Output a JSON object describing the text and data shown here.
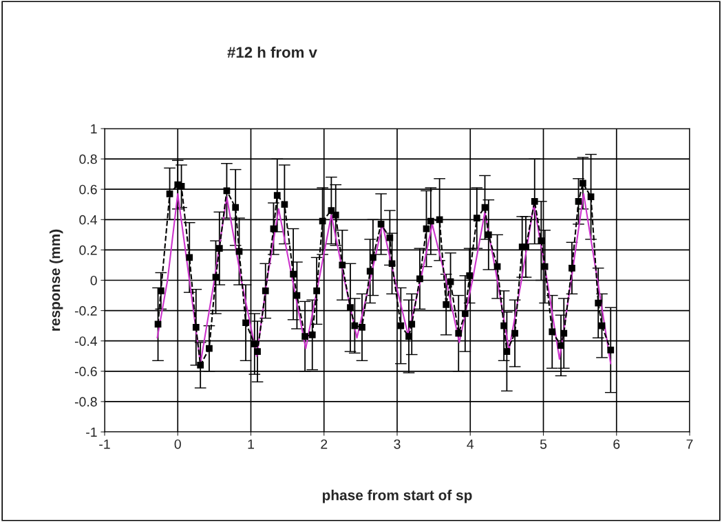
{
  "chart_data": {
    "type": "line",
    "title": "#12 h from v",
    "xlabel": "phase from start of sp",
    "ylabel": "response (mm)",
    "xlim": [
      -1,
      7
    ],
    "xticks": [
      -1,
      0,
      1,
      2,
      3,
      4,
      5,
      6,
      7
    ],
    "ylim": [
      -1,
      1
    ],
    "yticks": [
      -1,
      -0.8,
      -0.6,
      -0.4,
      -0.2,
      0,
      0.2,
      0.4,
      0.6,
      0.8,
      1
    ],
    "grid": true,
    "legend": false,
    "series": [
      {
        "color": "#cc33cc",
        "marker": "none",
        "line_style": "solid",
        "x": [
          -0.28,
          -0.14,
          0.0,
          0.16,
          0.31,
          0.5,
          0.67,
          0.87,
          1.08,
          1.22,
          1.38,
          1.57,
          1.75,
          1.93,
          2.1,
          2.28,
          2.45,
          2.63,
          2.8,
          2.97,
          3.15,
          3.32,
          3.48,
          3.67,
          3.85,
          4.03,
          4.2,
          4.37,
          4.53,
          4.7,
          4.87,
          5.05,
          5.22,
          5.38,
          5.55,
          5.74,
          5.92
        ],
        "values": [
          -0.38,
          0.0,
          0.57,
          0.0,
          -0.55,
          0.0,
          0.55,
          0.0,
          -0.5,
          0.0,
          0.47,
          0.0,
          -0.45,
          0.0,
          0.43,
          0.0,
          -0.38,
          0.0,
          0.37,
          0.0,
          -0.36,
          0.0,
          0.37,
          0.0,
          -0.41,
          0.0,
          0.45,
          0.0,
          -0.46,
          0.0,
          0.5,
          0.0,
          -0.52,
          0.0,
          0.57,
          0.0,
          -0.55
        ]
      },
      {
        "color": "#000000",
        "marker": "square",
        "line_style": "dashed",
        "x": [
          -0.27,
          -0.23,
          -0.11,
          0.0,
          0.05,
          0.16,
          0.25,
          0.31,
          0.43,
          0.52,
          0.57,
          0.67,
          0.79,
          0.84,
          0.93,
          1.05,
          1.09,
          1.2,
          1.31,
          1.36,
          1.46,
          1.58,
          1.63,
          1.74,
          1.84,
          1.9,
          1.98,
          2.1,
          2.16,
          2.25,
          2.36,
          2.42,
          2.52,
          2.63,
          2.67,
          2.78,
          2.9,
          2.93,
          3.05,
          3.16,
          3.2,
          3.31,
          3.4,
          3.46,
          3.58,
          3.67,
          3.73,
          3.84,
          3.93,
          3.99,
          4.09,
          4.2,
          4.25,
          4.37,
          4.46,
          4.5,
          4.61,
          4.71,
          4.76,
          4.88,
          4.97,
          5.02,
          5.12,
          5.24,
          5.28,
          5.39,
          5.48,
          5.54,
          5.65,
          5.75,
          5.8,
          5.92
        ],
        "values": [
          -0.29,
          -0.07,
          0.57,
          0.63,
          0.62,
          0.15,
          -0.31,
          -0.56,
          -0.45,
          0.02,
          0.21,
          0.59,
          0.48,
          0.19,
          -0.28,
          -0.42,
          -0.47,
          -0.07,
          0.34,
          0.56,
          0.5,
          0.04,
          -0.1,
          -0.37,
          -0.36,
          -0.07,
          0.39,
          0.46,
          0.43,
          0.1,
          -0.18,
          -0.3,
          -0.31,
          0.06,
          0.15,
          0.37,
          0.28,
          0.11,
          -0.3,
          -0.37,
          -0.29,
          0.01,
          0.34,
          0.39,
          0.4,
          -0.16,
          -0.01,
          -0.35,
          -0.22,
          0.03,
          0.41,
          0.48,
          0.3,
          0.09,
          -0.3,
          -0.47,
          -0.35,
          0.22,
          0.22,
          0.52,
          0.26,
          0.09,
          -0.34,
          -0.43,
          -0.35,
          0.08,
          0.52,
          0.64,
          0.55,
          -0.15,
          -0.3,
          -0.46
        ],
        "errors": [
          0.24,
          0.12,
          0.17,
          0.16,
          0.14,
          0.23,
          0.25,
          0.15,
          0.15,
          0.24,
          0.24,
          0.18,
          0.25,
          0.22,
          0.25,
          0.2,
          0.2,
          0.18,
          0.17,
          0.24,
          0.26,
          0.3,
          0.22,
          0.23,
          0.23,
          0.22,
          0.22,
          0.22,
          0.2,
          0.23,
          0.29,
          0.18,
          0.22,
          0.21,
          0.25,
          0.2,
          0.18,
          0.2,
          0.25,
          0.24,
          0.2,
          0.2,
          0.25,
          0.22,
          0.27,
          0.2,
          0.19,
          0.25,
          0.25,
          0.18,
          0.2,
          0.21,
          0.23,
          0.21,
          0.23,
          0.26,
          0.22,
          0.2,
          0.2,
          0.28,
          0.26,
          0.24,
          0.24,
          0.2,
          0.23,
          0.17,
          0.15,
          0.17,
          0.28,
          0.23,
          0.21,
          0.28
        ]
      }
    ]
  }
}
